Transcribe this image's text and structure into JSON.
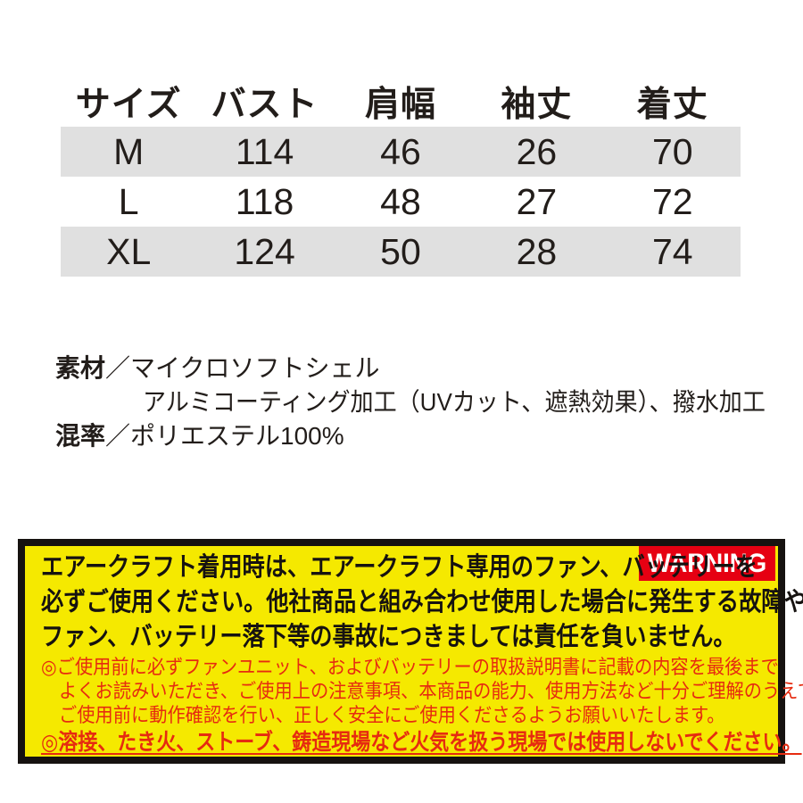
{
  "table": {
    "headers": [
      "サイズ",
      "バスト",
      "肩幅",
      "袖丈",
      "着丈"
    ],
    "rows": [
      [
        "M",
        "114",
        "46",
        "26",
        "70"
      ],
      [
        "L",
        "118",
        "48",
        "27",
        "72"
      ],
      [
        "XL",
        "124",
        "50",
        "28",
        "74"
      ]
    ]
  },
  "specs": {
    "material_label": "素材",
    "separator": "／",
    "material_line1": "マイクロソフトシェル",
    "material_line2": "アルミコーティング加工（UVカット、遮熱効果）、撥水加工",
    "blend_label": "混率",
    "blend_value": "ポリエステル100%"
  },
  "warning": {
    "badge": "WARNING",
    "main_lines": [
      "エアークラフト着用時は、エアークラフト専用のファン、バッテリーを",
      "必ずご使用ください。他社商品と組み合わせ使用した場合に発生する故障や",
      "ファン、バッテリー落下等の事故につきましては責任を負いません。"
    ],
    "notes": [
      "◎ご使用前に必ずファンユニット、およびバッテリーの取扱説明書に記載の内容を最後まで",
      "よくお読みいただき、ご使用上の注意事項、本商品の能力、使用方法など十分ご理解のうえで、",
      "ご使用前に動作確認を行い、正しく安全にご使用くださるようお願いいたします。"
    ],
    "final_note": "◎溶接、たき火、ストーブ、鋳造現場など火気を扱う現場では使用しないでください。"
  },
  "colors": {
    "row_stripe": "#e0e0e0",
    "warning_background": "#f5e900",
    "warning_border": "#161210",
    "badge_background": "#e60012",
    "badge_text": "#ffffff",
    "note_red": "#e62b10",
    "body_text": "#221d1a"
  }
}
